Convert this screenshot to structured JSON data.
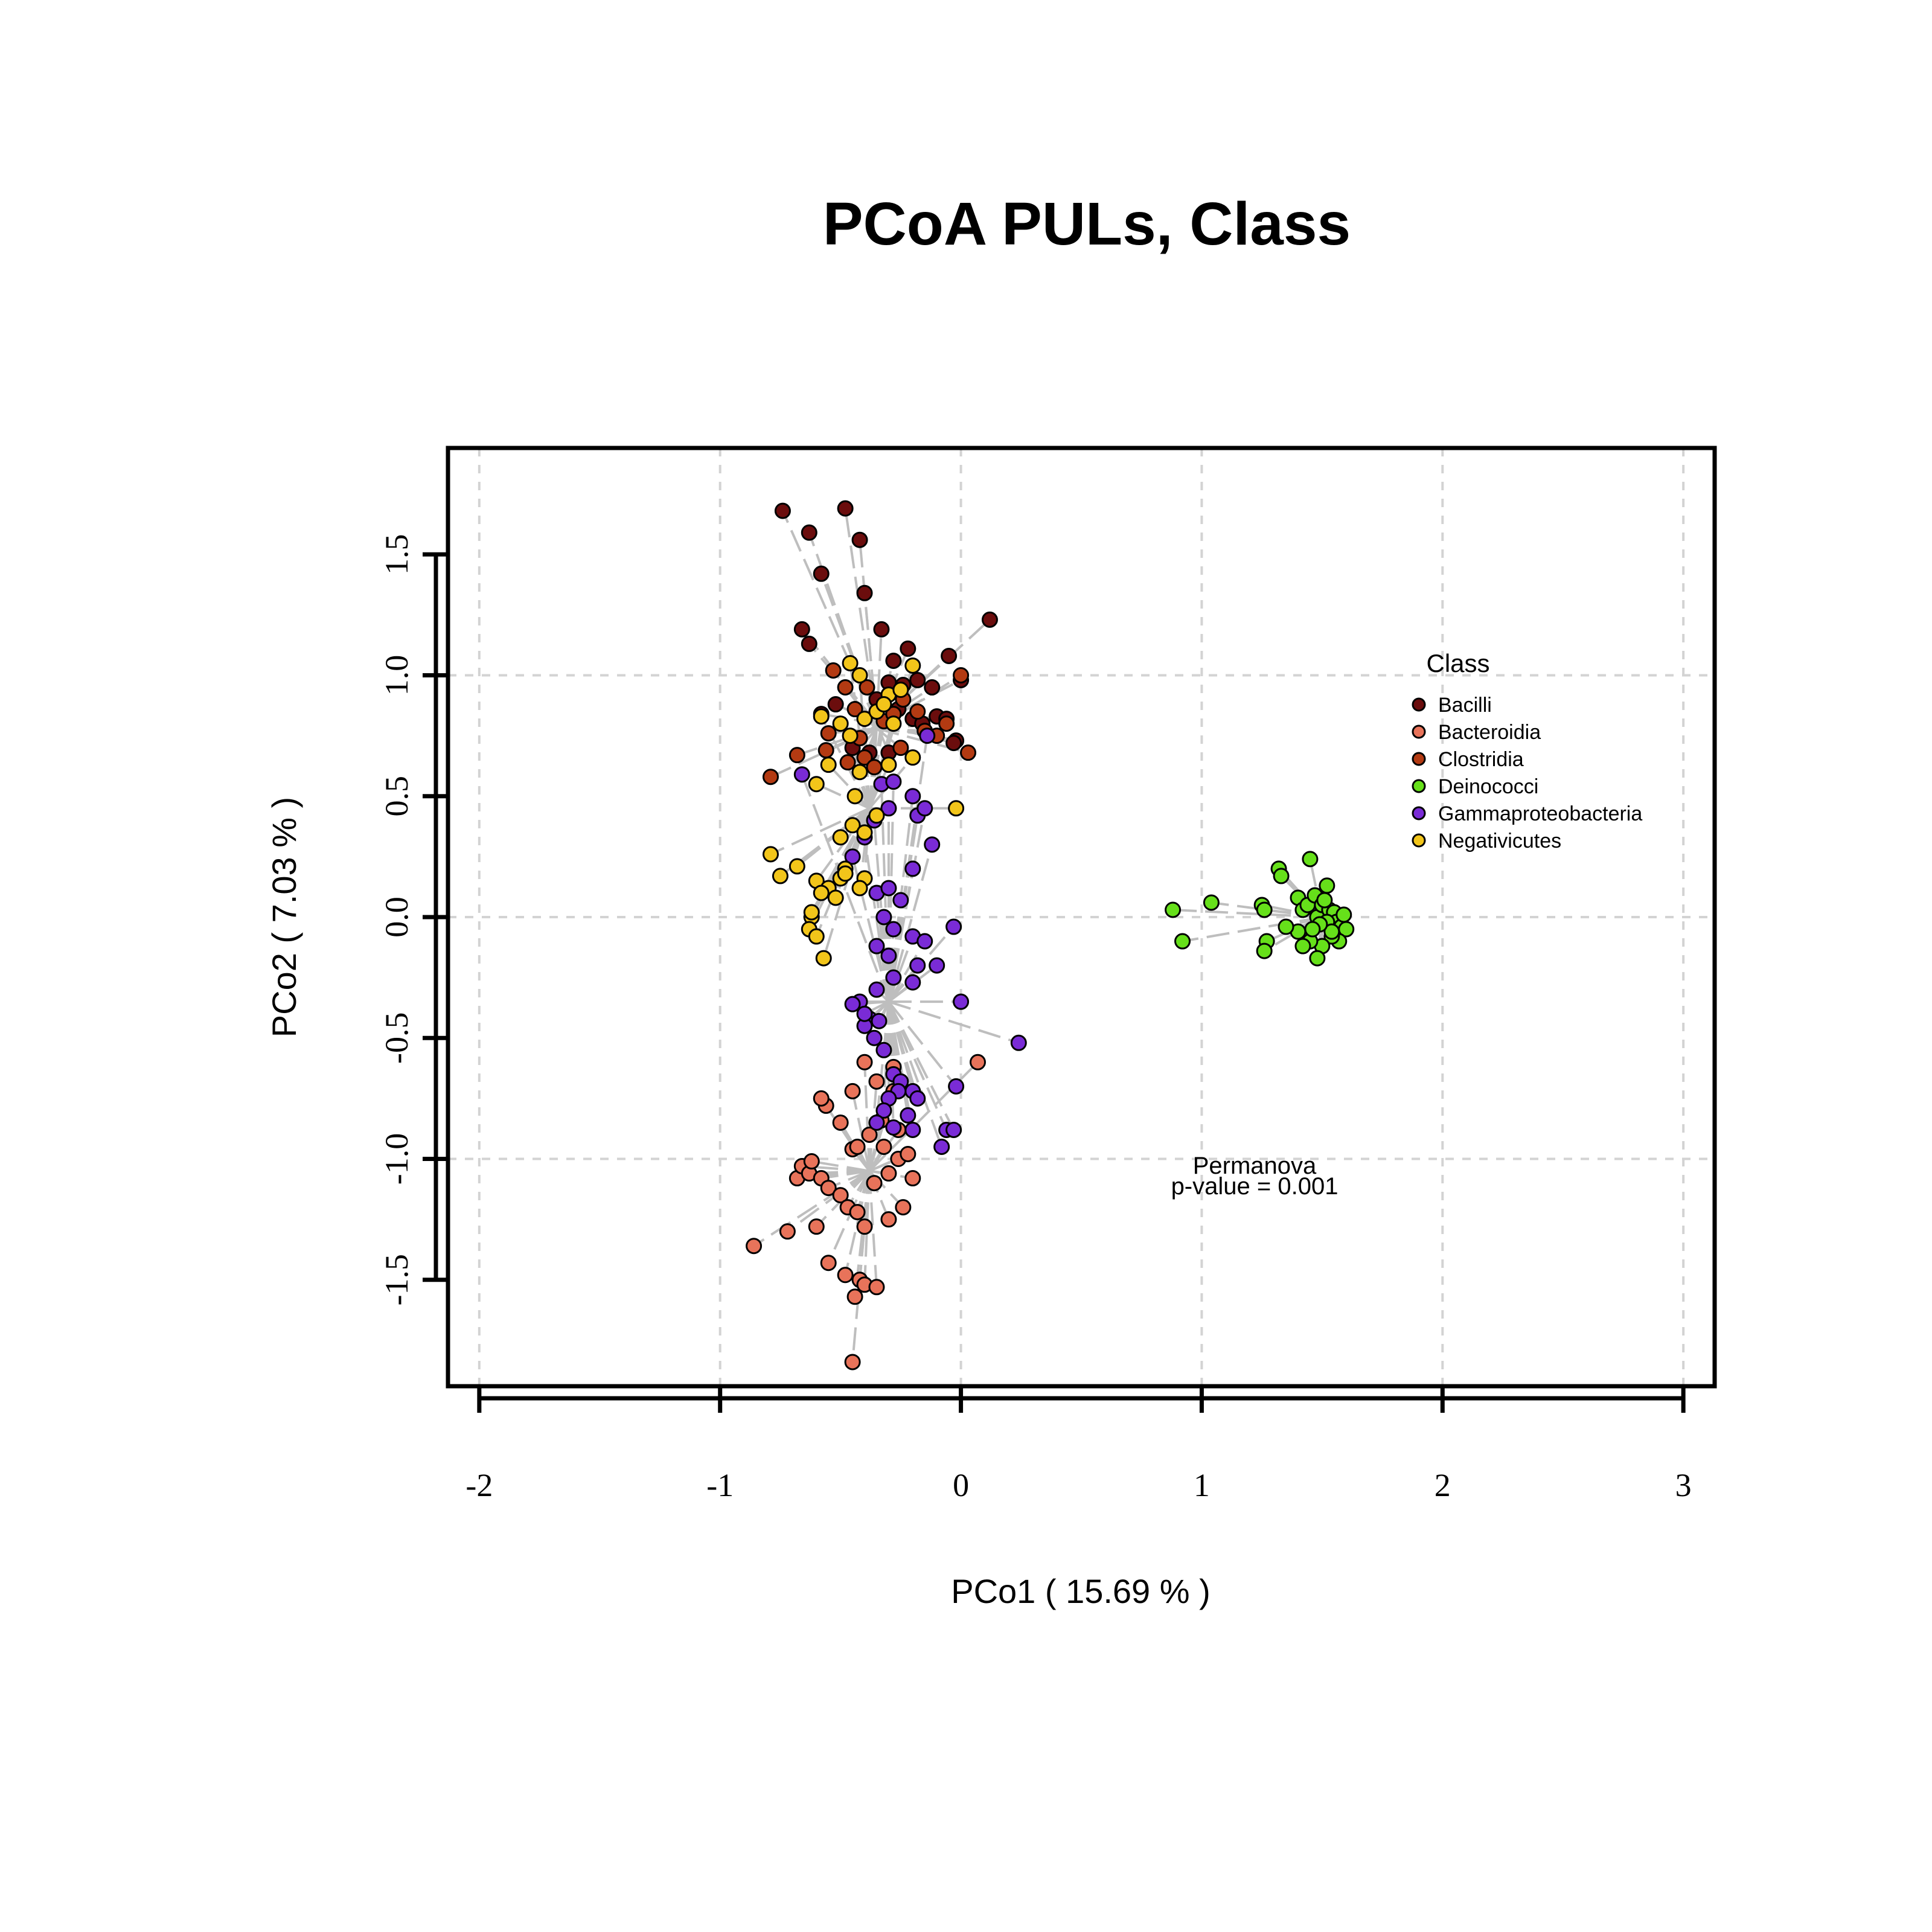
{
  "chart_data": {
    "type": "scatter",
    "title": "PCoA PULs, Class",
    "xlabel": "PCo1 ( 15.69 % )",
    "ylabel": "PCo2 ( 7.03 % )",
    "xlim": [
      -2.13,
      3.13
    ],
    "ylim": [
      -1.94,
      1.94
    ],
    "xticks": [
      -2,
      -1,
      0,
      1,
      2,
      3
    ],
    "yticks": [
      -1.5,
      -1.0,
      -0.5,
      0.0,
      0.5,
      1.0,
      1.5
    ],
    "xtick_labels": [
      "-2",
      "-1",
      "0",
      "1",
      "2",
      "3"
    ],
    "ytick_labels": [
      "-1.5",
      "-1.0",
      "-0.5",
      "0.0",
      "0.5",
      "1.0",
      "1.5"
    ],
    "grid": true,
    "legend_title": "Class",
    "legend_position": "right",
    "annotation": [
      "Permanova",
      "p-value = 0.001"
    ],
    "spider_line_color": "#bebebe",
    "series": [
      {
        "name": "Bacilli",
        "color": "#6b0d0d",
        "centroid": [
          -0.35,
          0.8
        ],
        "points": [
          [
            -0.74,
            1.68
          ],
          [
            -0.48,
            1.69
          ],
          [
            -0.63,
            1.59
          ],
          [
            -0.42,
            1.56
          ],
          [
            -0.58,
            1.42
          ],
          [
            -0.4,
            1.34
          ],
          [
            -0.66,
            1.19
          ],
          [
            -0.33,
            1.19
          ],
          [
            0.12,
            1.23
          ],
          [
            -0.22,
            1.11
          ],
          [
            -0.05,
            1.08
          ],
          [
            -0.28,
            1.06
          ],
          [
            -0.24,
            0.96
          ],
          [
            -0.18,
            0.98
          ],
          [
            -0.3,
            0.97
          ],
          [
            -0.12,
            0.95
          ],
          [
            0.0,
            0.98
          ],
          [
            -0.26,
            0.86
          ],
          [
            -0.1,
            0.83
          ],
          [
            -0.06,
            0.82
          ],
          [
            -0.2,
            0.82
          ],
          [
            -0.16,
            0.8
          ],
          [
            -0.02,
            0.73
          ],
          [
            -0.03,
            0.72
          ],
          [
            -0.38,
            0.68
          ],
          [
            -0.3,
            0.68
          ],
          [
            -0.58,
            0.84
          ],
          [
            -0.52,
            0.88
          ],
          [
            -0.45,
            0.7
          ],
          [
            -0.35,
            0.9
          ],
          [
            -0.63,
            1.13
          ]
        ]
      },
      {
        "name": "Bacteroidia",
        "color": "#e8735a",
        "centroid": [
          -0.38,
          -1.05
        ],
        "points": [
          [
            -0.86,
            -1.36
          ],
          [
            -0.72,
            -1.3
          ],
          [
            -0.6,
            -1.28
          ],
          [
            -0.55,
            -1.43
          ],
          [
            -0.48,
            -1.48
          ],
          [
            -0.42,
            -1.5
          ],
          [
            -0.4,
            -1.52
          ],
          [
            -0.35,
            -1.53
          ],
          [
            -0.44,
            -1.57
          ],
          [
            -0.45,
            -1.84
          ],
          [
            -0.68,
            -1.08
          ],
          [
            -0.66,
            -1.03
          ],
          [
            -0.63,
            -1.06
          ],
          [
            -0.58,
            -1.08
          ],
          [
            -0.55,
            -1.12
          ],
          [
            -0.5,
            -1.15
          ],
          [
            -0.47,
            -1.2
          ],
          [
            -0.43,
            -1.22
          ],
          [
            -0.4,
            -1.28
          ],
          [
            -0.36,
            -1.1
          ],
          [
            -0.3,
            -1.06
          ],
          [
            -0.26,
            -1.0
          ],
          [
            -0.22,
            -0.98
          ],
          [
            -0.2,
            -1.08
          ],
          [
            -0.24,
            -1.2
          ],
          [
            -0.3,
            -1.25
          ],
          [
            -0.5,
            -0.85
          ],
          [
            -0.45,
            -0.72
          ],
          [
            -0.4,
            -0.6
          ],
          [
            -0.35,
            -0.68
          ],
          [
            -0.28,
            -0.72
          ],
          [
            -0.38,
            -0.9
          ],
          [
            -0.32,
            -0.95
          ],
          [
            -0.45,
            -0.96
          ],
          [
            -0.56,
            -0.78
          ],
          [
            -0.58,
            -0.75
          ],
          [
            0.07,
            -0.6
          ],
          [
            -0.33,
            -0.84
          ],
          [
            -0.26,
            -0.88
          ],
          [
            -0.62,
            -1.01
          ],
          [
            -0.28,
            -0.62
          ],
          [
            -0.43,
            -0.95
          ]
        ]
      },
      {
        "name": "Clostridia",
        "color": "#b33a12",
        "centroid": [
          -0.35,
          0.78
        ],
        "points": [
          [
            -0.79,
            0.58
          ],
          [
            -0.68,
            0.67
          ],
          [
            -0.56,
            0.69
          ],
          [
            -0.53,
            1.02
          ],
          [
            -0.48,
            0.95
          ],
          [
            -0.44,
            0.86
          ],
          [
            -0.42,
            0.74
          ],
          [
            -0.4,
            0.66
          ],
          [
            -0.36,
            0.62
          ],
          [
            -0.32,
            0.81
          ],
          [
            -0.28,
            0.84
          ],
          [
            -0.24,
            0.9
          ],
          [
            -0.18,
            0.85
          ],
          [
            -0.15,
            0.77
          ],
          [
            -0.1,
            0.75
          ],
          [
            -0.06,
            0.8
          ],
          [
            0.0,
            1.0
          ],
          [
            0.03,
            0.68
          ],
          [
            -0.55,
            0.76
          ],
          [
            -0.25,
            0.7
          ],
          [
            -0.47,
            0.64
          ],
          [
            -0.39,
            0.95
          ]
        ]
      },
      {
        "name": "Deinococci",
        "color": "#66e01a",
        "centroid": [
          1.5,
          0.0
        ],
        "points": [
          [
            0.88,
            0.03
          ],
          [
            1.04,
            0.06
          ],
          [
            0.92,
            -0.1
          ],
          [
            1.25,
            0.05
          ],
          [
            1.26,
            0.03
          ],
          [
            1.27,
            -0.1
          ],
          [
            1.26,
            -0.14
          ],
          [
            1.32,
            0.2
          ],
          [
            1.33,
            0.17
          ],
          [
            1.4,
            0.08
          ],
          [
            1.42,
            0.03
          ],
          [
            1.44,
            0.05
          ],
          [
            1.45,
            0.24
          ],
          [
            1.47,
            0.09
          ],
          [
            1.48,
            0.0
          ],
          [
            1.5,
            0.05
          ],
          [
            1.52,
            0.13
          ],
          [
            1.53,
            0.03
          ],
          [
            1.55,
            0.02
          ],
          [
            1.56,
            -0.02
          ],
          [
            1.58,
            -0.04
          ],
          [
            1.6,
            -0.05
          ],
          [
            1.57,
            -0.1
          ],
          [
            1.54,
            -0.08
          ],
          [
            1.5,
            -0.12
          ],
          [
            1.48,
            -0.17
          ],
          [
            1.45,
            -0.1
          ],
          [
            1.42,
            -0.12
          ],
          [
            1.4,
            -0.06
          ],
          [
            1.35,
            -0.04
          ],
          [
            1.52,
            -0.02
          ],
          [
            1.54,
            -0.06
          ],
          [
            1.49,
            -0.03
          ],
          [
            1.59,
            0.01
          ],
          [
            1.51,
            0.07
          ],
          [
            1.46,
            -0.05
          ]
        ]
      },
      {
        "name": "Gammaproteobacteria",
        "color": "#7a2bd6",
        "centroid": [
          -0.3,
          -0.35
        ],
        "points": [
          [
            -0.66,
            0.59
          ],
          [
            -0.33,
            0.55
          ],
          [
            -0.28,
            0.56
          ],
          [
            -0.2,
            0.5
          ],
          [
            -0.18,
            0.42
          ],
          [
            -0.3,
            0.45
          ],
          [
            -0.36,
            0.4
          ],
          [
            -0.4,
            0.33
          ],
          [
            -0.45,
            0.25
          ],
          [
            -0.35,
            0.1
          ],
          [
            -0.3,
            0.12
          ],
          [
            -0.25,
            0.07
          ],
          [
            -0.32,
            0.0
          ],
          [
            -0.28,
            -0.05
          ],
          [
            -0.2,
            -0.08
          ],
          [
            -0.15,
            -0.1
          ],
          [
            -0.35,
            -0.12
          ],
          [
            -0.3,
            -0.16
          ],
          [
            -0.18,
            -0.2
          ],
          [
            -0.2,
            -0.27
          ],
          [
            -0.28,
            -0.25
          ],
          [
            -0.35,
            -0.3
          ],
          [
            -0.42,
            -0.35
          ],
          [
            -0.45,
            -0.36
          ],
          [
            -0.38,
            -0.42
          ],
          [
            -0.34,
            -0.43
          ],
          [
            -0.4,
            -0.45
          ],
          [
            -0.36,
            -0.5
          ],
          [
            -0.32,
            -0.55
          ],
          [
            -0.28,
            -0.65
          ],
          [
            -0.25,
            -0.68
          ],
          [
            -0.2,
            -0.72
          ],
          [
            -0.18,
            -0.75
          ],
          [
            -0.26,
            -0.72
          ],
          [
            -0.3,
            -0.75
          ],
          [
            -0.32,
            -0.8
          ],
          [
            -0.35,
            -0.85
          ],
          [
            -0.28,
            -0.87
          ],
          [
            -0.22,
            -0.82
          ],
          [
            -0.06,
            -0.88
          ],
          [
            -0.03,
            -0.88
          ],
          [
            -0.08,
            -0.95
          ],
          [
            -0.2,
            -0.88
          ],
          [
            0.0,
            -0.35
          ],
          [
            0.24,
            -0.52
          ],
          [
            -0.02,
            -0.7
          ],
          [
            -0.03,
            -0.04
          ],
          [
            -0.1,
            -0.2
          ],
          [
            -0.12,
            0.3
          ],
          [
            -0.2,
            0.2
          ],
          [
            -0.15,
            0.45
          ],
          [
            -0.14,
            0.75
          ],
          [
            -0.4,
            -0.4
          ]
        ]
      },
      {
        "name": "Negativicutes",
        "color": "#f2c51a",
        "centroid": [
          -0.38,
          0.45
        ],
        "points": [
          [
            -0.79,
            0.26
          ],
          [
            -0.75,
            0.17
          ],
          [
            -0.68,
            0.21
          ],
          [
            -0.6,
            0.15
          ],
          [
            -0.55,
            0.12
          ],
          [
            -0.5,
            0.16
          ],
          [
            -0.48,
            0.2
          ],
          [
            -0.52,
            0.08
          ],
          [
            -0.58,
            0.1
          ],
          [
            -0.62,
            0.0
          ],
          [
            -0.63,
            -0.05
          ],
          [
            -0.6,
            -0.08
          ],
          [
            -0.57,
            -0.17
          ],
          [
            -0.62,
            0.02
          ],
          [
            -0.5,
            0.33
          ],
          [
            -0.45,
            0.38
          ],
          [
            -0.4,
            0.35
          ],
          [
            -0.35,
            0.42
          ],
          [
            -0.44,
            0.5
          ],
          [
            -0.6,
            0.55
          ],
          [
            -0.55,
            0.63
          ],
          [
            -0.42,
            0.6
          ],
          [
            -0.3,
            0.63
          ],
          [
            -0.2,
            0.66
          ],
          [
            -0.02,
            0.45
          ],
          [
            -0.5,
            0.8
          ],
          [
            -0.46,
            0.75
          ],
          [
            -0.4,
            0.82
          ],
          [
            -0.35,
            0.85
          ],
          [
            -0.3,
            0.92
          ],
          [
            -0.25,
            0.94
          ],
          [
            -0.2,
            1.04
          ],
          [
            -0.42,
            1.0
          ],
          [
            -0.46,
            1.05
          ],
          [
            -0.58,
            0.83
          ],
          [
            -0.32,
            0.88
          ],
          [
            -0.28,
            0.8
          ],
          [
            -0.48,
            0.18
          ],
          [
            -0.4,
            0.16
          ],
          [
            -0.42,
            0.12
          ]
        ]
      }
    ]
  }
}
